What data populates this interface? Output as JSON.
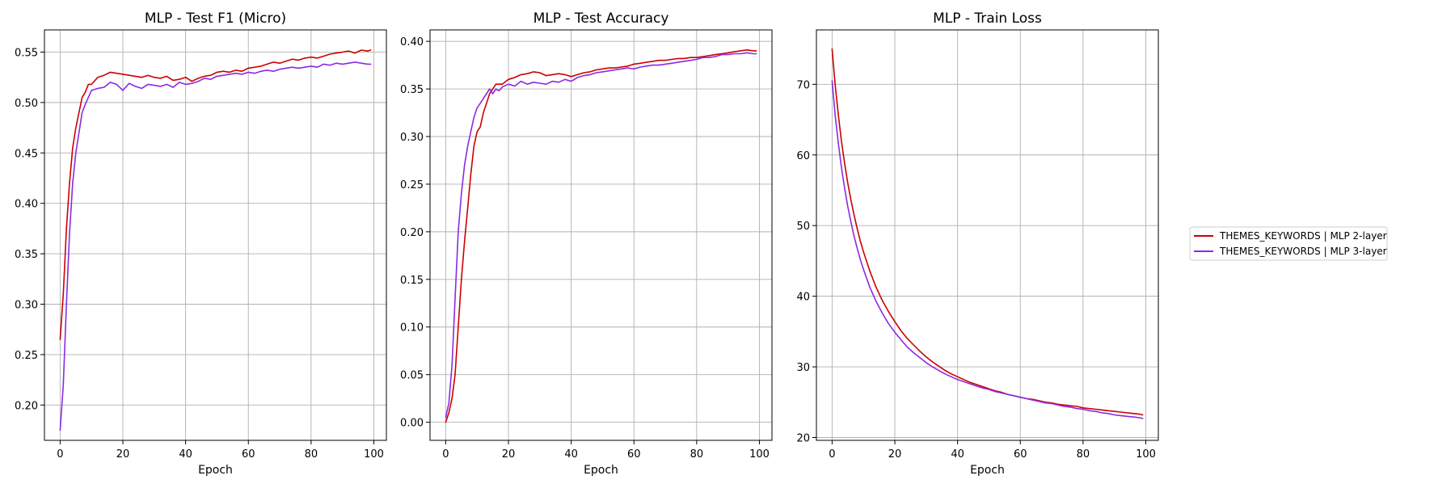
{
  "colors": {
    "series_2layer": "#cc0000",
    "series_3layer": "#8a2be2"
  },
  "legend": {
    "placement": "right-outside",
    "entries": [
      {
        "label": "THEMES_KEYWORDS | MLP 2-layer",
        "color": "#cc0000"
      },
      {
        "label": "THEMES_KEYWORDS | MLP 3-layer",
        "color": "#8a2be2"
      }
    ]
  },
  "chart_data": [
    {
      "type": "line",
      "title": "MLP - Test F1 (Micro)",
      "xlabel": "Epoch",
      "ylabel": "",
      "grid": true,
      "xlim": [
        -5,
        104
      ],
      "ylim": [
        0.165,
        0.572
      ],
      "xticks": [
        0,
        20,
        40,
        60,
        80,
        100
      ],
      "yticks": [
        0.2,
        0.25,
        0.3,
        0.35,
        0.4,
        0.45,
        0.5,
        0.55
      ],
      "ytick_decimals": 2,
      "series": [
        {
          "name": "THEMES_KEYWORDS | MLP 2-layer",
          "color": "#cc0000",
          "x": [
            0,
            1,
            2,
            3,
            4,
            5,
            6,
            7,
            8,
            9,
            10,
            12,
            14,
            16,
            18,
            20,
            22,
            24,
            26,
            28,
            30,
            32,
            34,
            36,
            38,
            40,
            42,
            44,
            46,
            48,
            50,
            52,
            54,
            56,
            58,
            60,
            62,
            64,
            66,
            68,
            70,
            72,
            74,
            76,
            78,
            80,
            82,
            84,
            86,
            88,
            90,
            92,
            94,
            96,
            98,
            99
          ],
          "y": [
            0.265,
            0.31,
            0.375,
            0.42,
            0.455,
            0.475,
            0.49,
            0.505,
            0.51,
            0.518,
            0.518,
            0.525,
            0.527,
            0.53,
            0.529,
            0.528,
            0.527,
            0.526,
            0.525,
            0.527,
            0.525,
            0.524,
            0.526,
            0.522,
            0.523,
            0.525,
            0.521,
            0.524,
            0.526,
            0.527,
            0.53,
            0.531,
            0.53,
            0.532,
            0.531,
            0.534,
            0.535,
            0.536,
            0.538,
            0.54,
            0.539,
            0.541,
            0.543,
            0.542,
            0.544,
            0.545,
            0.544,
            0.546,
            0.548,
            0.549,
            0.55,
            0.551,
            0.549,
            0.552,
            0.551,
            0.552
          ]
        },
        {
          "name": "THEMES_KEYWORDS | MLP 3-layer",
          "color": "#8a2be2",
          "x": [
            0,
            1,
            2,
            3,
            4,
            5,
            6,
            7,
            8,
            9,
            10,
            12,
            14,
            16,
            18,
            20,
            22,
            24,
            26,
            28,
            30,
            32,
            34,
            36,
            38,
            40,
            42,
            44,
            46,
            48,
            50,
            52,
            54,
            56,
            58,
            60,
            62,
            64,
            66,
            68,
            70,
            72,
            74,
            76,
            78,
            80,
            82,
            84,
            86,
            88,
            90,
            92,
            94,
            96,
            98,
            99
          ],
          "y": [
            0.175,
            0.22,
            0.3,
            0.37,
            0.42,
            0.45,
            0.47,
            0.49,
            0.498,
            0.505,
            0.512,
            0.514,
            0.515,
            0.52,
            0.518,
            0.512,
            0.519,
            0.516,
            0.514,
            0.518,
            0.517,
            0.516,
            0.518,
            0.515,
            0.52,
            0.518,
            0.519,
            0.521,
            0.524,
            0.523,
            0.526,
            0.527,
            0.528,
            0.529,
            0.528,
            0.53,
            0.529,
            0.531,
            0.532,
            0.531,
            0.533,
            0.534,
            0.535,
            0.534,
            0.535,
            0.536,
            0.535,
            0.538,
            0.537,
            0.539,
            0.538,
            0.539,
            0.54,
            0.539,
            0.538,
            0.538
          ]
        }
      ]
    },
    {
      "type": "line",
      "title": "MLP - Test Accuracy",
      "xlabel": "Epoch",
      "ylabel": "",
      "grid": true,
      "xlim": [
        -5,
        104
      ],
      "ylim": [
        -0.019,
        0.412
      ],
      "xticks": [
        0,
        20,
        40,
        60,
        80,
        100
      ],
      "yticks": [
        0.0,
        0.05,
        0.1,
        0.15,
        0.2,
        0.25,
        0.3,
        0.35,
        0.4
      ],
      "ytick_decimals": 2,
      "series": [
        {
          "name": "THEMES_KEYWORDS | MLP 2-layer",
          "color": "#cc0000",
          "x": [
            0,
            1,
            2,
            3,
            4,
            5,
            6,
            7,
            8,
            9,
            10,
            11,
            12,
            13,
            14,
            15,
            16,
            17,
            18,
            20,
            22,
            24,
            26,
            28,
            30,
            32,
            34,
            36,
            38,
            40,
            42,
            44,
            46,
            48,
            50,
            52,
            54,
            56,
            58,
            60,
            62,
            64,
            66,
            68,
            70,
            72,
            74,
            76,
            78,
            80,
            82,
            84,
            86,
            88,
            90,
            92,
            94,
            96,
            98,
            99
          ],
          "y": [
            0.0,
            0.01,
            0.025,
            0.05,
            0.1,
            0.15,
            0.19,
            0.225,
            0.26,
            0.29,
            0.305,
            0.31,
            0.325,
            0.335,
            0.345,
            0.35,
            0.355,
            0.355,
            0.355,
            0.36,
            0.362,
            0.365,
            0.366,
            0.368,
            0.367,
            0.364,
            0.365,
            0.366,
            0.365,
            0.363,
            0.365,
            0.367,
            0.368,
            0.37,
            0.371,
            0.372,
            0.372,
            0.373,
            0.374,
            0.376,
            0.377,
            0.378,
            0.379,
            0.38,
            0.38,
            0.381,
            0.382,
            0.382,
            0.383,
            0.383,
            0.384,
            0.385,
            0.386,
            0.387,
            0.388,
            0.389,
            0.39,
            0.391,
            0.39,
            0.39
          ]
        },
        {
          "name": "THEMES_KEYWORDS | MLP 3-layer",
          "color": "#8a2be2",
          "x": [
            0,
            1,
            2,
            3,
            4,
            5,
            6,
            7,
            8,
            9,
            10,
            11,
            12,
            13,
            14,
            15,
            16,
            17,
            18,
            20,
            22,
            24,
            26,
            28,
            30,
            32,
            34,
            36,
            38,
            40,
            42,
            44,
            46,
            48,
            50,
            52,
            54,
            56,
            58,
            60,
            62,
            64,
            66,
            68,
            70,
            72,
            74,
            76,
            78,
            80,
            82,
            84,
            86,
            88,
            90,
            92,
            94,
            96,
            98,
            99
          ],
          "y": [
            0.005,
            0.02,
            0.06,
            0.13,
            0.2,
            0.24,
            0.27,
            0.29,
            0.305,
            0.32,
            0.33,
            0.335,
            0.34,
            0.345,
            0.35,
            0.345,
            0.35,
            0.348,
            0.352,
            0.355,
            0.353,
            0.358,
            0.355,
            0.357,
            0.356,
            0.355,
            0.358,
            0.357,
            0.36,
            0.358,
            0.362,
            0.364,
            0.365,
            0.367,
            0.368,
            0.369,
            0.37,
            0.371,
            0.372,
            0.371,
            0.373,
            0.374,
            0.375,
            0.375,
            0.376,
            0.377,
            0.378,
            0.379,
            0.38,
            0.381,
            0.383,
            0.383,
            0.384,
            0.386,
            0.386,
            0.387,
            0.387,
            0.388,
            0.387,
            0.387
          ]
        }
      ]
    },
    {
      "type": "line",
      "title": "MLP - Train Loss",
      "xlabel": "Epoch",
      "ylabel": "",
      "grid": true,
      "xlim": [
        -5,
        104
      ],
      "ylim": [
        19.6,
        77.7
      ],
      "xticks": [
        0,
        20,
        40,
        60,
        80,
        100
      ],
      "yticks": [
        20,
        30,
        40,
        50,
        60,
        70
      ],
      "ytick_decimals": 0,
      "series": [
        {
          "name": "THEMES_KEYWORDS | MLP 2-layer",
          "color": "#cc0000",
          "x": [
            0,
            1,
            2,
            3,
            4,
            5,
            6,
            7,
            8,
            9,
            10,
            12,
            14,
            16,
            18,
            20,
            22,
            24,
            26,
            28,
            30,
            32,
            34,
            36,
            38,
            40,
            42,
            44,
            46,
            48,
            50,
            52,
            54,
            56,
            58,
            60,
            62,
            64,
            66,
            68,
            70,
            72,
            74,
            76,
            78,
            80,
            82,
            84,
            86,
            88,
            90,
            92,
            94,
            96,
            98,
            99
          ],
          "y": [
            75.0,
            69.8,
            65.6,
            61.9,
            58.8,
            56.0,
            53.6,
            51.5,
            49.6,
            47.8,
            46.3,
            43.6,
            41.3,
            39.4,
            37.8,
            36.4,
            35.1,
            34.0,
            33.1,
            32.2,
            31.4,
            30.7,
            30.1,
            29.5,
            29.0,
            28.6,
            28.2,
            27.8,
            27.5,
            27.2,
            26.9,
            26.6,
            26.4,
            26.1,
            25.9,
            25.7,
            25.5,
            25.4,
            25.2,
            25.0,
            24.9,
            24.7,
            24.6,
            24.5,
            24.4,
            24.2,
            24.1,
            24.0,
            23.9,
            23.8,
            23.7,
            23.6,
            23.5,
            23.4,
            23.3,
            23.2
          ]
        },
        {
          "name": "THEMES_KEYWORDS | MLP 3-layer",
          "color": "#8a2be2",
          "x": [
            0,
            1,
            2,
            3,
            4,
            5,
            6,
            7,
            8,
            9,
            10,
            12,
            14,
            16,
            18,
            20,
            22,
            24,
            26,
            28,
            30,
            32,
            34,
            36,
            38,
            40,
            42,
            44,
            46,
            48,
            50,
            52,
            54,
            56,
            58,
            60,
            62,
            64,
            66,
            68,
            70,
            72,
            74,
            76,
            78,
            80,
            82,
            84,
            86,
            88,
            90,
            92,
            94,
            96,
            98,
            99
          ],
          "y": [
            70.5,
            65.5,
            61.6,
            58.2,
            55.3,
            52.7,
            50.5,
            48.5,
            46.8,
            45.2,
            43.8,
            41.3,
            39.3,
            37.6,
            36.1,
            34.9,
            33.8,
            32.8,
            32.0,
            31.3,
            30.6,
            30.0,
            29.5,
            29.0,
            28.6,
            28.2,
            27.9,
            27.6,
            27.3,
            27.0,
            26.8,
            26.5,
            26.3,
            26.1,
            25.9,
            25.7,
            25.5,
            25.3,
            25.1,
            24.9,
            24.8,
            24.6,
            24.4,
            24.3,
            24.1,
            24.0,
            23.8,
            23.7,
            23.5,
            23.4,
            23.2,
            23.1,
            23.0,
            22.9,
            22.8,
            22.7
          ]
        }
      ]
    }
  ]
}
